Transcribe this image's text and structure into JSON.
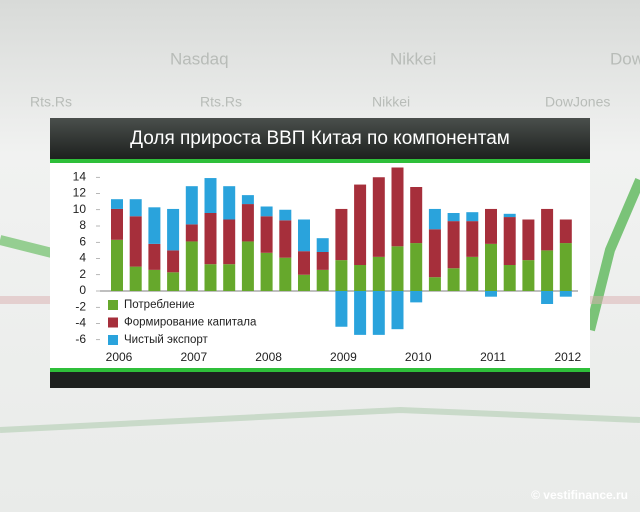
{
  "chart_data": {
    "type": "stacked_bar",
    "title": "Доля прироста ВВП Китая по компонентам",
    "categories": [
      "2006",
      null,
      null,
      null,
      "2007",
      null,
      null,
      null,
      "2008",
      null,
      null,
      null,
      "2009",
      null,
      null,
      null,
      "2010",
      null,
      null,
      null,
      "2011",
      null,
      null,
      null,
      "2012"
    ],
    "series": [
      {
        "name": "Потребление",
        "color": "#66a82c",
        "values": [
          6.3,
          3.0,
          2.6,
          2.3,
          6.1,
          3.3,
          3.3,
          6.1,
          4.7,
          4.1,
          2.0,
          2.6,
          3.8,
          3.2,
          4.2,
          5.5,
          5.9,
          1.7,
          2.8,
          4.2,
          5.8,
          3.2,
          3.8,
          5.0,
          5.9
        ]
      },
      {
        "name": "Формирование капитала",
        "color": "#a62f3b",
        "values": [
          3.8,
          6.2,
          3.2,
          2.7,
          2.1,
          6.3,
          5.5,
          4.6,
          4.5,
          4.6,
          2.9,
          2.2,
          6.3,
          9.9,
          9.8,
          9.7,
          6.9,
          5.9,
          5.8,
          4.4,
          4.3,
          5.9,
          5.0,
          5.1,
          2.9
        ]
      },
      {
        "name": "Чистый экспорт",
        "color": "#2aa3dc",
        "values": [
          1.2,
          2.1,
          4.5,
          5.1,
          4.7,
          4.3,
          4.1,
          1.1,
          1.2,
          1.3,
          3.9,
          1.7,
          -4.4,
          -5.4,
          -5.4,
          -4.7,
          -1.4,
          2.5,
          1.0,
          1.1,
          -0.7,
          0.4,
          0,
          -1.6,
          -0.7
        ]
      }
    ],
    "ylim": [
      -8,
      16
    ],
    "yticks": [
      14,
      12,
      10,
      8,
      6,
      4,
      2,
      0,
      -2,
      -4,
      -6
    ],
    "legend": "lower-left"
  },
  "background": [
    "Nasdaq",
    "Nikkei",
    "Dow",
    "Rts.Rs",
    "Rts.Rs",
    "Nikkei",
    "DowJones"
  ],
  "watermark": "© vestifinance.ru"
}
